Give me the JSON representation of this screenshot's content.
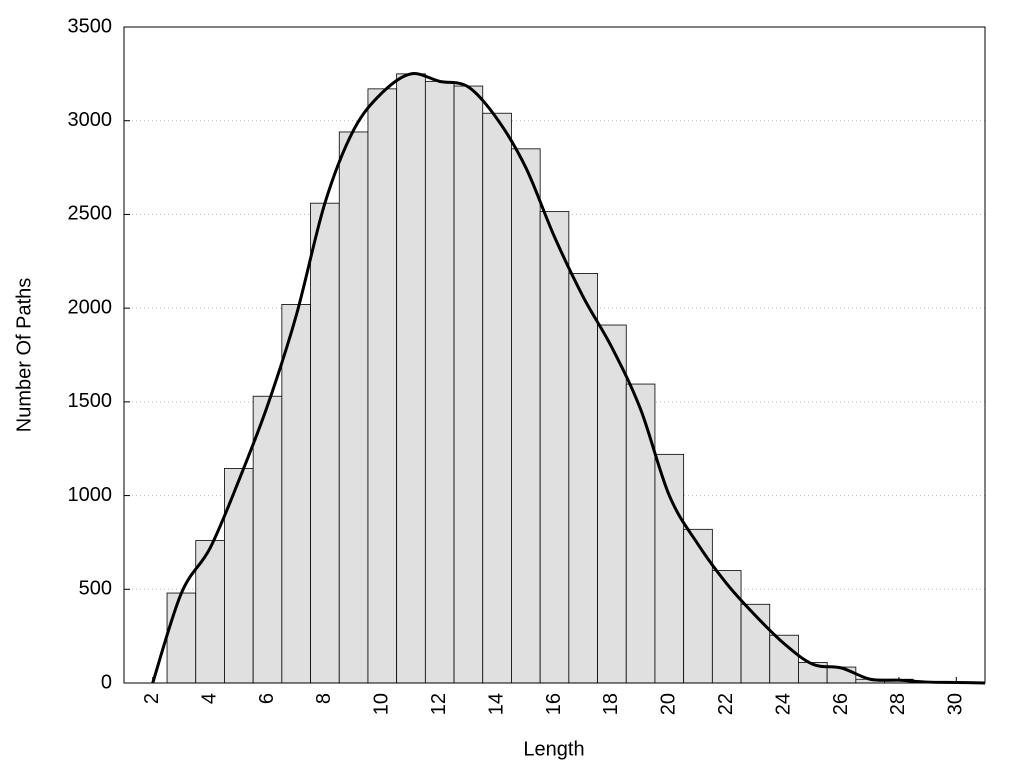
{
  "chart_data": {
    "type": "histogram",
    "x_label": "Length",
    "y_label": "Number Of Paths",
    "bins": [
      2.5,
      3.5,
      4.5,
      5.5,
      6.5,
      7.5,
      8.5,
      9.5,
      10.5,
      11.5,
      12.5,
      13.5,
      14.5,
      15.5,
      16.5,
      17.5,
      18.5,
      19.5,
      20.5,
      21.5,
      22.5,
      23.5,
      24.5,
      25.5,
      26.5,
      27.5,
      28.5,
      29.5,
      30.5
    ],
    "values": [
      480,
      760,
      1145,
      1530,
      2020,
      2560,
      2940,
      3170,
      3250,
      3210,
      3185,
      3040,
      2850,
      2515,
      2185,
      1910,
      1595,
      1220,
      820,
      600,
      420,
      255,
      110,
      85,
      20,
      20,
      8,
      5
    ],
    "color": "#e0e0e0",
    "curve": {
      "color": "#000000",
      "x": [
        2,
        3,
        4,
        5,
        6,
        7,
        8,
        9,
        10,
        11,
        12,
        13,
        14,
        15,
        16,
        17,
        18,
        19,
        20,
        21,
        22,
        23,
        24,
        25,
        26,
        27,
        28,
        29,
        30,
        31
      ],
      "values": [
        0,
        480,
        720,
        1080,
        1480,
        1960,
        2560,
        2950,
        3150,
        3250,
        3210,
        3180,
        3010,
        2750,
        2380,
        2060,
        1790,
        1460,
        1000,
        740,
        530,
        360,
        210,
        100,
        80,
        20,
        15,
        5,
        3,
        0
      ]
    },
    "xlim": [
      1,
      31
    ],
    "xticks": [
      2,
      4,
      6,
      8,
      10,
      12,
      14,
      16,
      18,
      20,
      22,
      24,
      26,
      28,
      30
    ],
    "ylim": [
      0,
      3500
    ],
    "yticks": [
      0,
      500,
      1000,
      1500,
      2000,
      2500,
      3000,
      3500
    ],
    "grid": true
  }
}
